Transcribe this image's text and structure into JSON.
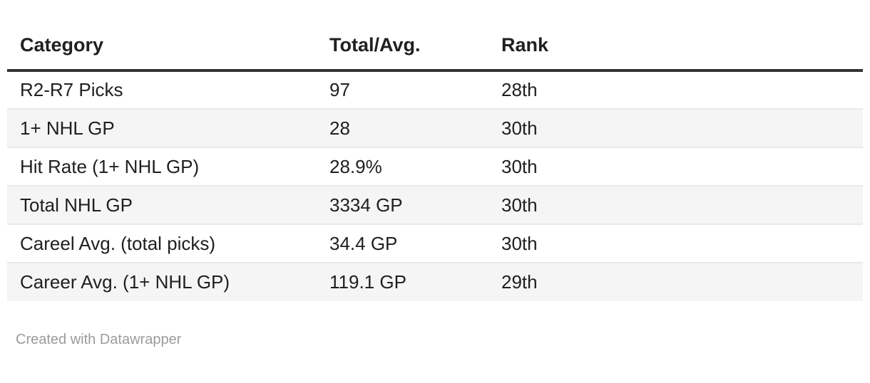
{
  "chart_data": {
    "type": "table",
    "columns": [
      "Category",
      "Total/Avg.",
      "Rank"
    ],
    "rows": [
      [
        "R2-R7 Picks",
        "97",
        "28th"
      ],
      [
        "1+ NHL GP",
        "28",
        "30th"
      ],
      [
        "Hit Rate (1+ NHL GP)",
        "28.9%",
        "30th"
      ],
      [
        "Total NHL GP",
        "3334 GP",
        "30th"
      ],
      [
        "Careel Avg. (total picks)",
        "34.4 GP",
        "30th"
      ],
      [
        "Career Avg. (1+ NHL GP)",
        "119.1 GP",
        "29th"
      ]
    ],
    "layout": {
      "zebra_striping": true,
      "header_rule": true,
      "column_alignment": [
        "left",
        "left",
        "left"
      ]
    }
  },
  "footer": {
    "attribution_prefix": "Created with ",
    "attribution_brand": "Datawrapper"
  },
  "colors": {
    "header_border": "#333333",
    "row_border": "#e9e9e9",
    "zebra": "#f5f5f5",
    "text": "#202020",
    "footer_text": "#9b9b9b",
    "background": "#ffffff"
  }
}
